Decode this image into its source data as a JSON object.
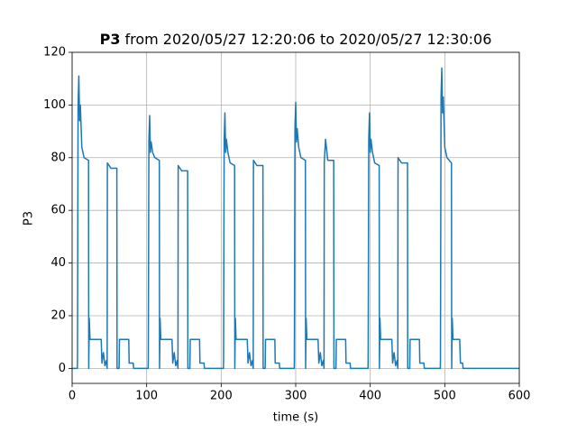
{
  "chart_data": {
    "type": "line",
    "title": {
      "bold": "P3",
      "rest": "from 2020/05/27 12:20:06 to 2020/05/27 12:30:06"
    },
    "xlabel": "time (s)",
    "ylabel": "P3",
    "xlim": [
      0,
      600
    ],
    "ylim": [
      -5.7,
      120
    ],
    "xticks": [
      0,
      100,
      200,
      300,
      400,
      500,
      600
    ],
    "yticks": [
      0,
      20,
      40,
      60,
      80,
      100,
      120
    ],
    "grid": true,
    "series": [
      {
        "color": "#1f77b4",
        "x": [
          0,
          7,
          7.2,
          8,
          9,
          10,
          11,
          13,
          16,
          22,
          22.3,
          23,
          24,
          39,
          40,
          42,
          44,
          46,
          47,
          47.3,
          52,
          60,
          60.3,
          63,
          63.5,
          76,
          76.5,
          82,
          82.5,
          102,
          102.2,
          103,
          104,
          105,
          106,
          108,
          111,
          117,
          117.3,
          118,
          119,
          134,
          135,
          137,
          139,
          141,
          142,
          142.3,
          147,
          155,
          155.3,
          158,
          158.5,
          171,
          171.5,
          177,
          177.5,
          203,
          203.2,
          204,
          205,
          206,
          207,
          209,
          212,
          218,
          218.3,
          219,
          220,
          235,
          236,
          238,
          240,
          242,
          243,
          243.3,
          248,
          256,
          256.3,
          259,
          259.5,
          272,
          272.5,
          278,
          278.5,
          298,
          298.2,
          299,
          300,
          301,
          302,
          304,
          307,
          313,
          313.3,
          314,
          315,
          330,
          331,
          333,
          335,
          337,
          338,
          338.3,
          340,
          343,
          351,
          351.3,
          354,
          354.5,
          367,
          367.5,
          373,
          373.5,
          397,
          397.2,
          398,
          399,
          400,
          401,
          403,
          406,
          412,
          412.3,
          413,
          414,
          429,
          430,
          432,
          434,
          436,
          437,
          437.3,
          442,
          450,
          450.3,
          453,
          453.5,
          466,
          466.5,
          472,
          472.5,
          494,
          494.2,
          495,
          496,
          497,
          498,
          500,
          503,
          509,
          509.3,
          510,
          511,
          520,
          521,
          524,
          524.5,
          600
        ],
        "values": [
          0,
          0,
          3,
          100,
          111,
          94,
          100,
          84,
          80,
          79,
          0,
          19,
          11,
          11,
          2,
          6,
          1,
          3,
          0,
          78,
          76,
          76,
          0,
          0,
          11,
          11,
          2,
          2,
          0,
          0,
          3,
          86,
          96,
          82,
          86,
          82,
          80,
          79,
          0,
          19,
          11,
          11,
          2,
          6,
          1,
          3,
          0,
          77,
          75,
          75,
          0,
          0,
          11,
          11,
          2,
          2,
          0,
          0,
          3,
          87,
          97,
          82,
          87,
          82,
          78,
          77,
          0,
          19,
          11,
          11,
          2,
          6,
          1,
          3,
          0,
          79,
          77,
          77,
          0,
          0,
          11,
          11,
          2,
          2,
          0,
          0,
          3,
          91,
          101,
          86,
          91,
          84,
          80,
          79,
          0,
          19,
          11,
          11,
          2,
          6,
          1,
          3,
          0,
          78,
          87,
          79,
          79,
          0,
          0,
          11,
          11,
          2,
          2,
          0,
          0,
          3,
          87,
          97,
          82,
          87,
          82,
          78,
          77,
          0,
          19,
          11,
          11,
          2,
          6,
          1,
          3,
          0,
          80,
          78,
          78,
          0,
          0,
          11,
          11,
          2,
          2,
          0,
          0,
          3,
          103,
          114,
          97,
          103,
          84,
          80,
          78,
          0,
          19,
          11,
          11,
          2,
          2,
          0,
          0
        ]
      }
    ]
  }
}
